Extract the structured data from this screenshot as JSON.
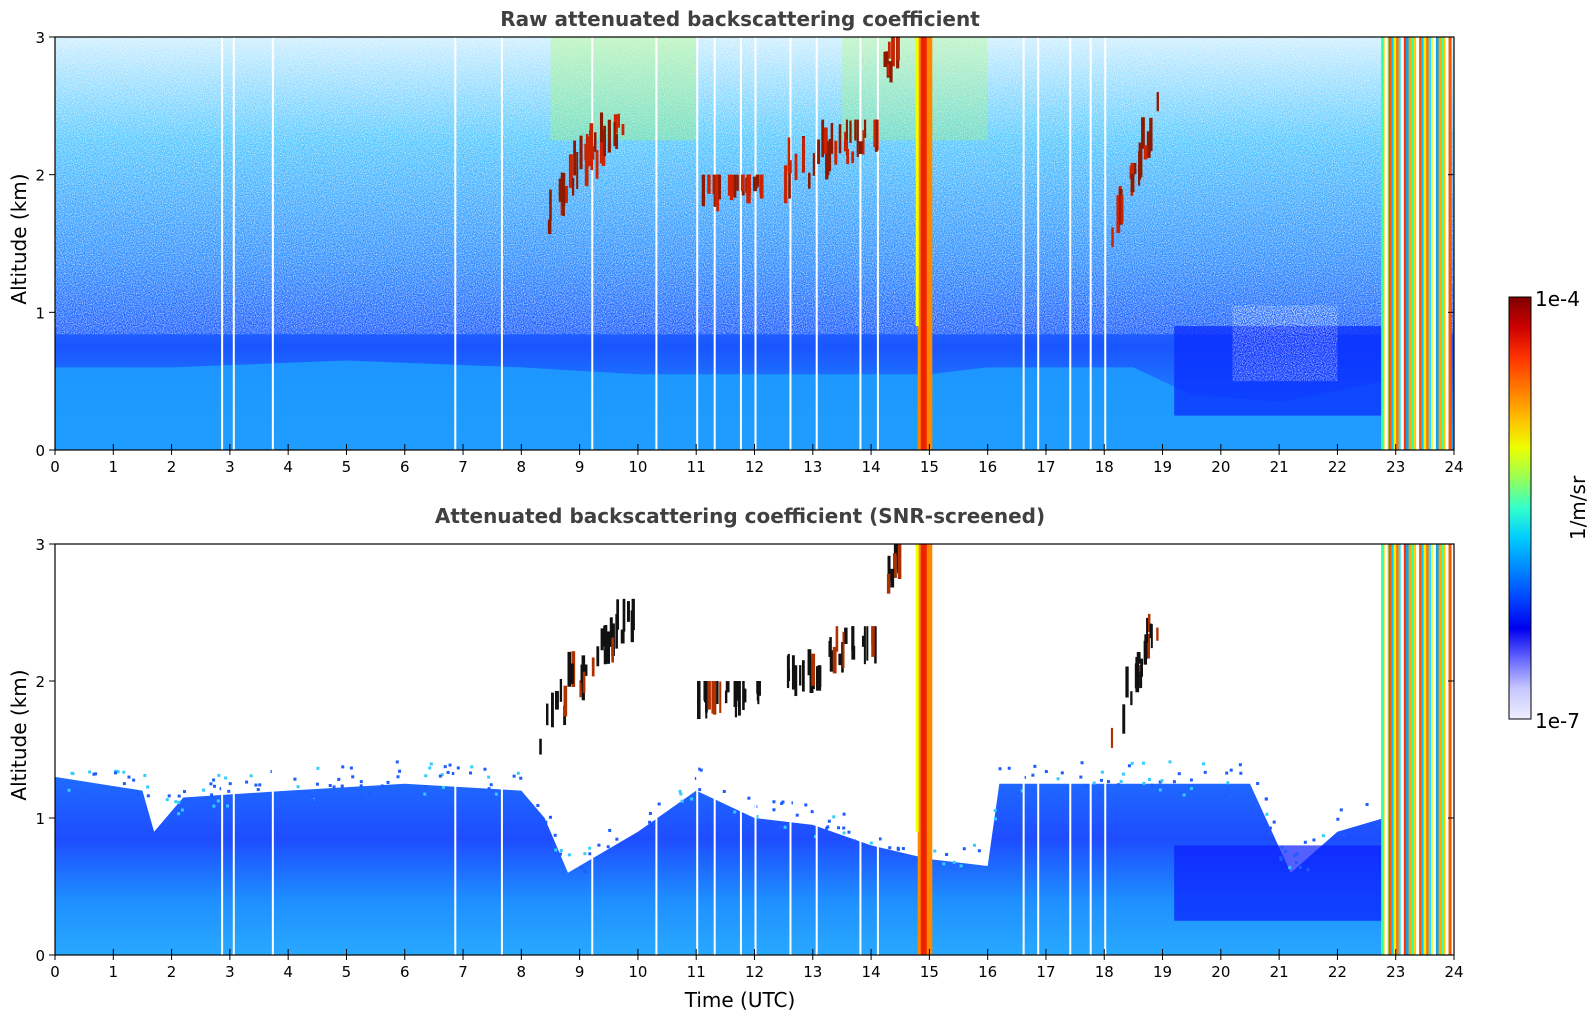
{
  "chart_data": [
    {
      "type": "heatmap",
      "title": "Raw attenuated backscattering coefficient",
      "xlabel": "",
      "ylabel": "Altitude (km)",
      "xlim": [
        0,
        24
      ],
      "ylim": [
        0,
        3
      ],
      "xticks": [
        "0",
        "1",
        "2",
        "3",
        "4",
        "5",
        "6",
        "7",
        "8",
        "9",
        "10",
        "11",
        "12",
        "13",
        "14",
        "15",
        "16",
        "17",
        "18",
        "19",
        "20",
        "21",
        "22",
        "23",
        "24"
      ],
      "yticks": [
        "0",
        "1",
        "2",
        "3"
      ],
      "cloud_layers": [
        {
          "t0": 8.3,
          "t1": 9.9,
          "z0": 1.4,
          "z1": 2.6
        },
        {
          "t0": 11.0,
          "t1": 12.1,
          "z0": 1.8,
          "z1": 2.0
        },
        {
          "t0": 12.5,
          "t1": 14.1,
          "z0": 1.8,
          "z1": 2.4
        },
        {
          "t0": 14.2,
          "t1": 14.5,
          "z0": 2.6,
          "z1": 3.0
        },
        {
          "t0": 18.1,
          "t1": 18.9,
          "z0": 1.3,
          "z1": 2.6
        }
      ],
      "precip_columns": [
        {
          "t0": 14.8,
          "t1": 15.05
        },
        {
          "t0": 22.75,
          "t1": 23.95
        }
      ],
      "boundary_layer_km": [
        [
          0,
          0.6
        ],
        [
          2,
          0.6
        ],
        [
          5,
          0.65
        ],
        [
          8,
          0.6
        ],
        [
          10,
          0.55
        ],
        [
          13,
          0.55
        ],
        [
          15,
          0.55
        ],
        [
          16,
          0.6
        ],
        [
          18.5,
          0.6
        ],
        [
          19.5,
          0.4
        ],
        [
          21,
          0.35
        ],
        [
          22.8,
          0.5
        ]
      ]
    },
    {
      "type": "heatmap",
      "title": "Attenuated backscattering coefficient (SNR-screened)",
      "xlabel": "Time (UTC)",
      "ylabel": "Altitude (km)",
      "xlim": [
        0,
        24
      ],
      "ylim": [
        0,
        3
      ],
      "xticks": [
        "0",
        "1",
        "2",
        "3",
        "4",
        "5",
        "6",
        "7",
        "8",
        "9",
        "10",
        "11",
        "12",
        "13",
        "14",
        "15",
        "16",
        "17",
        "18",
        "19",
        "20",
        "21",
        "22",
        "23",
        "24"
      ],
      "yticks": [
        "0",
        "1",
        "2",
        "3"
      ],
      "screened_top_km": [
        [
          0,
          1.3
        ],
        [
          1.5,
          1.2
        ],
        [
          1.7,
          0.9
        ],
        [
          2.2,
          1.15
        ],
        [
          4,
          1.2
        ],
        [
          6,
          1.25
        ],
        [
          8,
          1.2
        ],
        [
          8.4,
          1.0
        ],
        [
          8.8,
          0.6
        ],
        [
          10,
          0.9
        ],
        [
          11,
          1.2
        ],
        [
          12,
          1.0
        ],
        [
          13,
          0.95
        ],
        [
          14,
          0.8
        ],
        [
          15,
          0.7
        ],
        [
          16,
          0.65
        ],
        [
          16.2,
          1.25
        ],
        [
          19,
          1.25
        ],
        [
          20.5,
          1.25
        ],
        [
          21.2,
          0.6
        ],
        [
          22,
          0.9
        ],
        [
          22.8,
          1.0
        ]
      ],
      "cloud_layers": [
        {
          "t0": 8.3,
          "t1": 9.9,
          "z0": 1.4,
          "z1": 2.6
        },
        {
          "t0": 11.0,
          "t1": 12.1,
          "z0": 1.8,
          "z1": 2.0
        },
        {
          "t0": 12.5,
          "t1": 14.1,
          "z0": 1.8,
          "z1": 2.4
        },
        {
          "t0": 14.2,
          "t1": 14.5,
          "z0": 2.6,
          "z1": 3.0
        },
        {
          "t0": 18.1,
          "t1": 18.9,
          "z0": 1.3,
          "z1": 2.6
        }
      ],
      "precip_columns": [
        {
          "t0": 14.8,
          "t1": 15.05
        },
        {
          "t0": 22.75,
          "t1": 23.95
        }
      ]
    }
  ],
  "colorbar": {
    "label": "1/m/sr",
    "max_label": "1e-4",
    "min_label": "1e-7",
    "colors": [
      "#7f0000",
      "#cc0000",
      "#ff3300",
      "#ff7700",
      "#ffbb00",
      "#eeff00",
      "#99ff55",
      "#33ffcc",
      "#00ccff",
      "#0088ff",
      "#0044ff",
      "#0000ee",
      "#6666ff",
      "#c8c8ff",
      "#eeeeff"
    ]
  }
}
